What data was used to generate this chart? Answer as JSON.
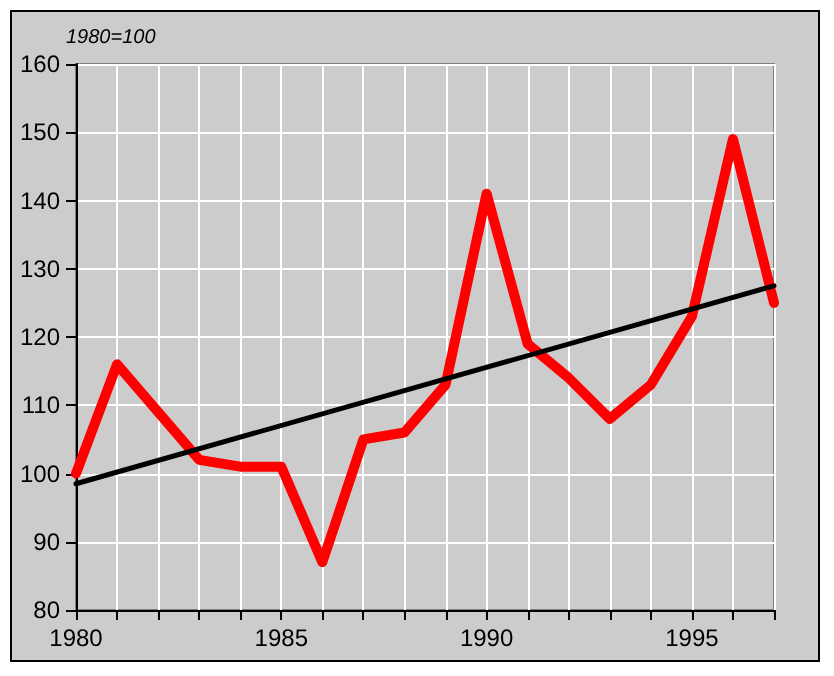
{
  "chart_data": {
    "type": "line",
    "ylabel": "1980=100",
    "x": [
      1980,
      1981,
      1982,
      1983,
      1984,
      1985,
      1986,
      1987,
      1988,
      1989,
      1990,
      1991,
      1992,
      1993,
      1994,
      1995,
      1996,
      1997
    ],
    "series": [
      {
        "color": "#ff0000",
        "values": [
          100,
          116,
          109,
          102,
          101,
          101,
          87,
          105,
          106,
          113,
          141,
          119,
          114,
          108,
          113,
          123,
          149,
          125
        ]
      },
      {
        "type": "line",
        "color": "#000000",
        "x": [
          1980,
          1997
        ],
        "values": [
          98.5,
          127.5
        ]
      }
    ],
    "xlim": [
      1980,
      1997
    ],
    "xticks": [
      1980,
      {
        "value": 1981,
        "label": null
      },
      {
        "value": 1982,
        "label": null
      },
      {
        "value": 1983,
        "label": null
      },
      {
        "value": 1984,
        "label": null
      },
      1985,
      {
        "value": 1986,
        "label": null
      },
      {
        "value": 1987,
        "label": null
      },
      {
        "value": 1988,
        "label": null
      },
      {
        "value": 1989,
        "label": null
      },
      1990,
      {
        "value": 1991,
        "label": null
      },
      {
        "value": 1992,
        "label": null
      },
      {
        "value": 1993,
        "label": null
      },
      {
        "value": 1994,
        "label": null
      },
      1995,
      {
        "value": 1996,
        "label": null
      },
      {
        "value": 1997,
        "label": null
      }
    ],
    "ylim": [
      80,
      160
    ],
    "yticks": [
      80,
      90,
      100,
      110,
      120,
      130,
      140,
      150,
      160
    ],
    "grid": true,
    "marker": "none",
    "line_style": "solid"
  }
}
